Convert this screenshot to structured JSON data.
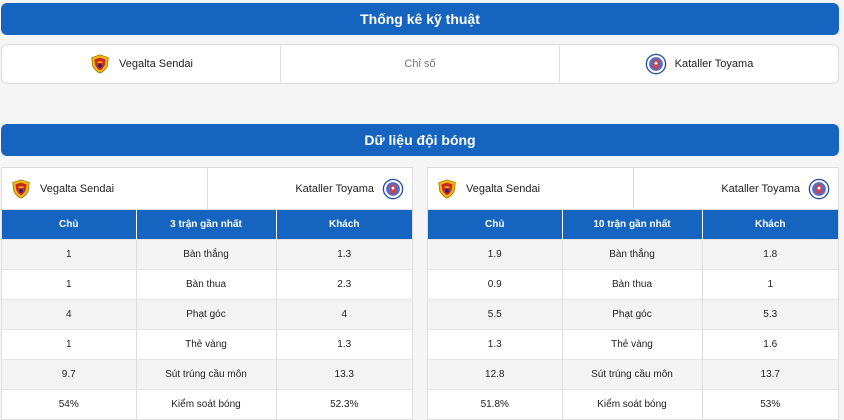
{
  "technical": {
    "title": "Thống kê kỹ thuật",
    "home_team": "Vegalta Sendai",
    "center_label": "Chỉ số",
    "away_team": "Kataller Toyama"
  },
  "team_data": {
    "title": "Dữ liệu đội bóng",
    "panels": [
      {
        "home_team": "Vegalta Sendai",
        "away_team": "Kataller Toyama",
        "headers": [
          "Chủ",
          "3 trận gần nhất",
          "Khách"
        ],
        "rows": [
          [
            "1",
            "Bàn thắng",
            "1.3"
          ],
          [
            "1",
            "Bàn thua",
            "2.3"
          ],
          [
            "4",
            "Phạt góc",
            "4"
          ],
          [
            "1",
            "Thẻ vàng",
            "1.3"
          ],
          [
            "9.7",
            "Sút trúng cầu môn",
            "13.3"
          ],
          [
            "54%",
            "Kiểm soát bóng",
            "52.3%"
          ]
        ]
      },
      {
        "home_team": "Vegalta Sendai",
        "away_team": "Kataller Toyama",
        "headers": [
          "Chủ",
          "10 trận gần nhất",
          "Khách"
        ],
        "rows": [
          [
            "1.9",
            "Bàn thắng",
            "1.8"
          ],
          [
            "0.9",
            "Bàn thua",
            "1"
          ],
          [
            "5.5",
            "Phạt góc",
            "5.3"
          ],
          [
            "1.3",
            "Thẻ vàng",
            "1.6"
          ],
          [
            "12.8",
            "Sút trúng cầu môn",
            "13.7"
          ],
          [
            "51.8%",
            "Kiểm soát bóng",
            "53%"
          ]
        ]
      }
    ]
  },
  "icons": {
    "home_logo": "vegalta-sendai-crest-icon",
    "away_logo": "kataller-toyama-crest-icon"
  },
  "colors": {
    "header_blue": "#1565c0",
    "vegalta_gold": "#f2b705",
    "vegalta_red": "#c62828",
    "kataller_blue": "#2a4fa8",
    "kataller_red": "#e53935"
  }
}
